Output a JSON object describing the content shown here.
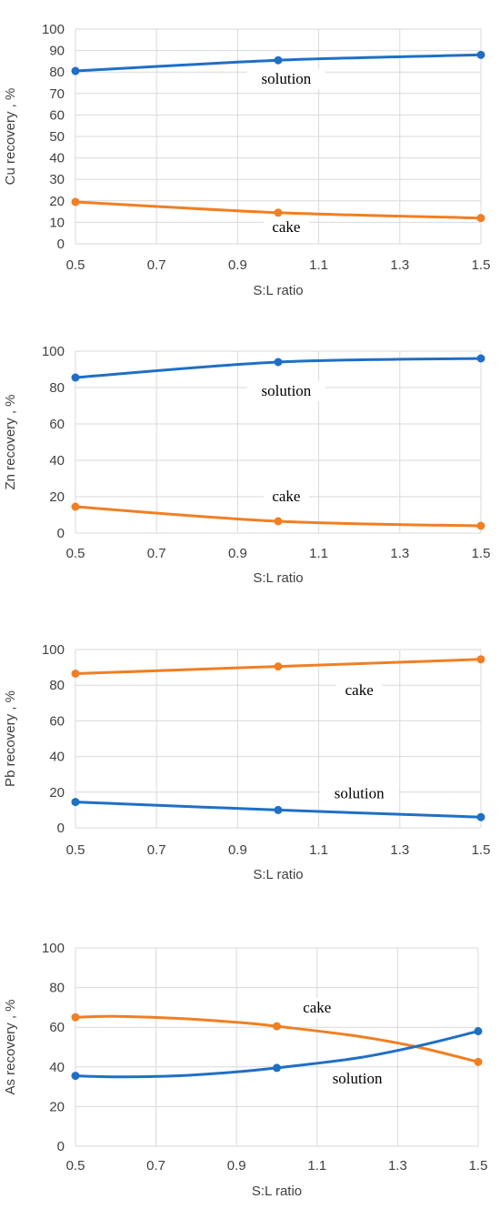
{
  "colors": {
    "solution": "#1f6fc5",
    "cake": "#f07f22",
    "grid": "#d9d9d9",
    "text": "#404040"
  },
  "chart_data": [
    {
      "type": "line",
      "title": "",
      "xlabel": "S:L ratio",
      "ylabel": "Cu recovery , %",
      "xlim": [
        0.5,
        1.5
      ],
      "ylim": [
        0,
        100
      ],
      "xticks": [
        "0.5",
        "0.7",
        "0.9",
        "1.1",
        "1.3",
        "1.5"
      ],
      "yticks": [
        "0",
        "10",
        "20",
        "30",
        "40",
        "50",
        "60",
        "70",
        "80",
        "90",
        "100"
      ],
      "grid": true,
      "legend": "none",
      "series": [
        {
          "key": "solution",
          "color": "#1f6fc5",
          "x": [
            0.5,
            1.0,
            1.5
          ],
          "values": [
            80.5,
            85.5,
            88
          ]
        },
        {
          "key": "cake",
          "color": "#f07f22",
          "x": [
            0.5,
            1.0,
            1.5
          ],
          "values": [
            19.5,
            14.5,
            12
          ]
        }
      ],
      "annotations": [
        {
          "text": "solution",
          "x": 1.02,
          "y": 75
        },
        {
          "text": "cake",
          "x": 1.02,
          "y": 6
        }
      ]
    },
    {
      "type": "line",
      "title": "",
      "xlabel": "S:L ratio",
      "ylabel": "Zn recovery , %",
      "xlim": [
        0.5,
        1.5
      ],
      "ylim": [
        0,
        100
      ],
      "xticks": [
        "0.5",
        "0.7",
        "0.9",
        "1.1",
        "1.3",
        "1.5"
      ],
      "yticks": [
        "0",
        "20",
        "40",
        "60",
        "80",
        "100"
      ],
      "grid": true,
      "legend": "none",
      "series": [
        {
          "key": "solution",
          "color": "#1f6fc5",
          "x": [
            0.5,
            1.0,
            1.5
          ],
          "values": [
            85.5,
            94,
            96
          ]
        },
        {
          "key": "cake",
          "color": "#f07f22",
          "x": [
            0.5,
            1.0,
            1.5
          ],
          "values": [
            14.5,
            6.5,
            4
          ]
        }
      ],
      "annotations": [
        {
          "text": "solution",
          "x": 1.02,
          "y": 76
        },
        {
          "text": "cake",
          "x": 1.02,
          "y": 18
        }
      ]
    },
    {
      "type": "line",
      "title": "",
      "xlabel": "S:L ratio",
      "ylabel": "Pb recovery , %",
      "xlim": [
        0.5,
        1.5
      ],
      "ylim": [
        0,
        100
      ],
      "xticks": [
        "0.5",
        "0.7",
        "0.9",
        "1.1",
        "1.3",
        "1.5"
      ],
      "yticks": [
        "0",
        "20",
        "40",
        "60",
        "80",
        "100"
      ],
      "grid": true,
      "legend": "none",
      "series": [
        {
          "key": "cake",
          "color": "#f07f22",
          "x": [
            0.5,
            1.0,
            1.5
          ],
          "values": [
            86.5,
            90.5,
            94.5
          ]
        },
        {
          "key": "solution",
          "color": "#1f6fc5",
          "x": [
            0.5,
            1.0,
            1.5
          ],
          "values": [
            14.5,
            10,
            6
          ]
        }
      ],
      "annotations": [
        {
          "text": "cake",
          "x": 1.2,
          "y": 75
        },
        {
          "text": "solution",
          "x": 1.2,
          "y": 17
        }
      ]
    },
    {
      "type": "line",
      "title": "",
      "xlabel": "S:L ratio",
      "ylabel": "As recovery , %",
      "xlim": [
        0.5,
        1.5
      ],
      "ylim": [
        0,
        100
      ],
      "xticks": [
        "0.5",
        "0.7",
        "0.9",
        "1.1",
        "1.3",
        "1.5"
      ],
      "yticks": [
        "0",
        "20",
        "40",
        "60",
        "80",
        "100"
      ],
      "grid": true,
      "legend": "none",
      "series": [
        {
          "key": "cake",
          "color": "#f07f22",
          "x": [
            0.5,
            1.0,
            1.5
          ],
          "values": [
            65,
            60.5,
            42.5
          ],
          "smooth_mid": [
            [
              0.6,
              65.5
            ],
            [
              0.75,
              64.5
            ],
            [
              0.9,
              62.5
            ],
            [
              1.2,
              55.5
            ],
            [
              1.35,
              50
            ]
          ]
        },
        {
          "key": "solution",
          "color": "#1f6fc5",
          "x": [
            0.5,
            1.0,
            1.5
          ],
          "values": [
            35.5,
            39.5,
            58
          ],
          "smooth_mid": [
            [
              0.6,
              35
            ],
            [
              0.75,
              35.5
            ],
            [
              0.9,
              37.5
            ],
            [
              1.2,
              44.5
            ],
            [
              1.35,
              50.5
            ]
          ]
        }
      ],
      "annotations": [
        {
          "text": "cake",
          "x": 1.1,
          "y": 68
        },
        {
          "text": "solution",
          "x": 1.2,
          "y": 32
        }
      ]
    }
  ]
}
